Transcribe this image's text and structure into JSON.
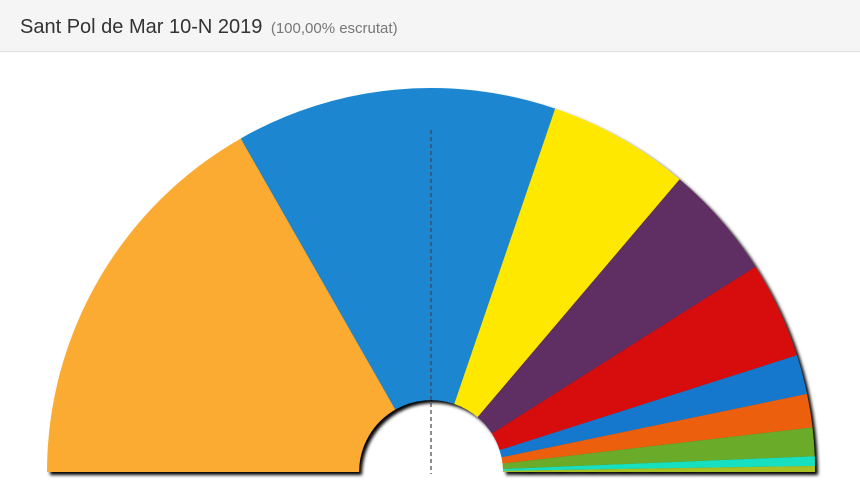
{
  "chart_data": {
    "type": "halfdonut",
    "title": "Sant Pol de Mar 10-N 2019",
    "subtitle": "(100,00% escrutat)",
    "values": [
      33.4,
      26.9,
      11.9,
      9.6,
      8.1,
      3.3,
      2.8,
      2.4,
      0.8,
      0.5
    ],
    "colors": [
      "#fbab30",
      "#1a87d0",
      "#ffe800",
      "#5f2f63",
      "#d7100f",
      "#1878cd",
      "#ec600f",
      "#6aab2a",
      "#17e0c0",
      "#a8c020"
    ]
  }
}
